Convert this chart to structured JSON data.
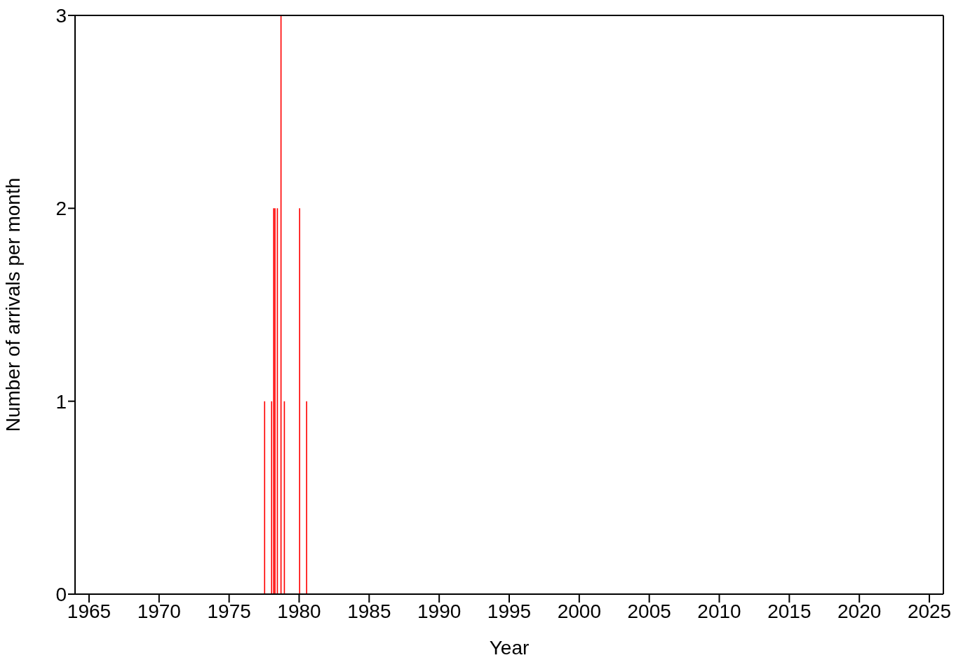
{
  "chart_data": {
    "type": "bar",
    "xlabel": "Year",
    "ylabel": "Number of arrivals per month",
    "x": [
      1977.54,
      1978.04,
      1978.19,
      1978.28,
      1978.45,
      1978.71,
      1978.95,
      1980.04,
      1980.54
    ],
    "values": [
      1,
      1,
      2,
      2,
      2,
      3,
      1,
      2,
      1
    ],
    "color": "#ff0000",
    "xlim": [
      1964,
      2026
    ],
    "xticks": [
      1965,
      1970,
      1975,
      1980,
      1985,
      1990,
      1995,
      2000,
      2005,
      2010,
      2015,
      2020,
      2025
    ],
    "ylim": [
      0,
      3
    ],
    "yticks": [
      0,
      1,
      2,
      3
    ],
    "grid": false,
    "legend": false
  }
}
